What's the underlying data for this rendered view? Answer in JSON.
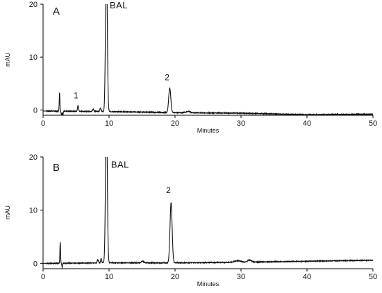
{
  "chart_data": [
    {
      "type": "line",
      "panel_label": "A",
      "xlabel": "Minutes",
      "ylabel": "mAU",
      "xlim": [
        0,
        50
      ],
      "ylim": [
        -1,
        20
      ],
      "x_ticks": [
        0,
        10,
        20,
        30,
        40,
        50
      ],
      "y_ticks": [
        0,
        10,
        20
      ],
      "grid": false,
      "baseline": [
        [
          0,
          -0.2
        ],
        [
          10,
          -0.3
        ],
        [
          20,
          -0.5
        ],
        [
          30,
          -0.6
        ],
        [
          40,
          -0.9
        ],
        [
          50,
          -0.8
        ]
      ],
      "peaks": [
        {
          "label": "",
          "rt": 2.5,
          "height": 3.5,
          "width": 0.05
        },
        {
          "label": "",
          "rt": 2.8,
          "height": -1.0,
          "width": 0.05
        },
        {
          "label": "",
          "rt": 3.0,
          "height": -0.9,
          "width": 0.05
        },
        {
          "label": "1",
          "rt": 5.3,
          "height": 1.1,
          "width": 0.08
        },
        {
          "label": "",
          "rt": 7.6,
          "height": 0.4,
          "width": 0.1
        },
        {
          "label": "",
          "rt": 8.7,
          "height": 0.6,
          "width": 0.1
        },
        {
          "label": "BAL",
          "rt": 9.6,
          "height": 30.0,
          "width": 0.13
        },
        {
          "label": "2",
          "rt": 19.2,
          "height": 4.6,
          "width": 0.16
        },
        {
          "label": "",
          "rt": 22.0,
          "height": 0.25,
          "width": 0.3
        }
      ],
      "annotations": [
        {
          "text": "BAL",
          "x": 10.1,
          "y": 19.2
        },
        {
          "text": "1",
          "x": 5.0,
          "y": 2.2
        },
        {
          "text": "2",
          "x": 18.8,
          "y": 5.6
        }
      ]
    },
    {
      "type": "line",
      "panel_label": "B",
      "xlabel": "Minutes",
      "ylabel": "mAU",
      "xlim": [
        0,
        50
      ],
      "ylim": [
        -1,
        20
      ],
      "x_ticks": [
        0,
        10,
        20,
        30,
        40,
        50
      ],
      "y_ticks": [
        0,
        10,
        20
      ],
      "grid": false,
      "baseline": [
        [
          0,
          0.0
        ],
        [
          10,
          0.1
        ],
        [
          20,
          0.1
        ],
        [
          30,
          0.2
        ],
        [
          40,
          0.4
        ],
        [
          50,
          0.6
        ]
      ],
      "peaks": [
        {
          "label": "",
          "rt": 2.6,
          "height": 4.0,
          "width": 0.05
        },
        {
          "label": "",
          "rt": 2.9,
          "height": -0.8,
          "width": 0.05
        },
        {
          "label": "",
          "rt": 8.3,
          "height": 0.6,
          "width": 0.1
        },
        {
          "label": "",
          "rt": 8.8,
          "height": 0.8,
          "width": 0.08
        },
        {
          "label": "BAL",
          "rt": 9.6,
          "height": 30.0,
          "width": 0.13
        },
        {
          "label": "",
          "rt": 15.1,
          "height": 0.3,
          "width": 0.2
        },
        {
          "label": "2",
          "rt": 19.4,
          "height": 11.3,
          "width": 0.16
        },
        {
          "label": "",
          "rt": 29.5,
          "height": 0.3,
          "width": 0.5
        },
        {
          "label": "",
          "rt": 31.3,
          "height": 0.4,
          "width": 0.3
        }
      ],
      "annotations": [
        {
          "text": "BAL",
          "x": 10.3,
          "y": 18.0
        },
        {
          "text": "2",
          "x": 19.0,
          "y": 13.2
        }
      ]
    }
  ]
}
